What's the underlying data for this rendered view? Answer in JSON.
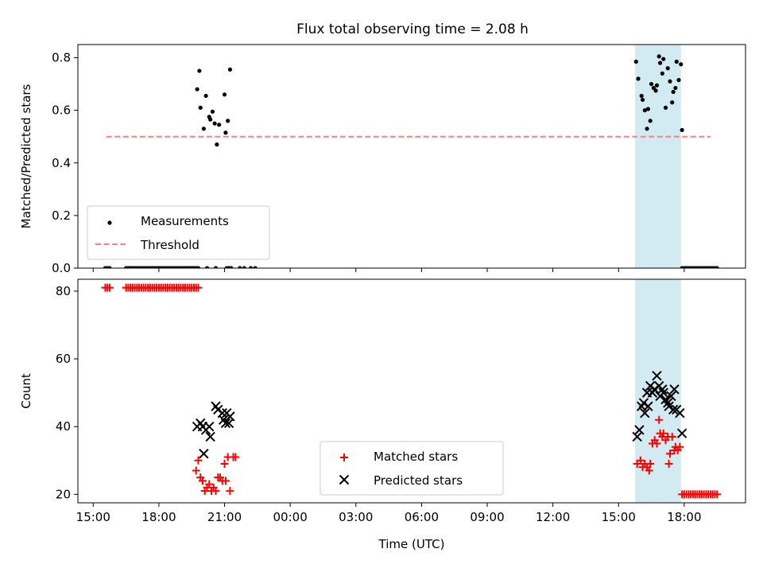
{
  "figure": {
    "title": "Flux total observing time = 2.08 h"
  },
  "colors": {
    "measurements": "#000000",
    "threshold": "#ff7f7f",
    "matched": "#ff0000",
    "predicted": "#000000",
    "highlight": "#add8e6"
  },
  "chart_data": [
    {
      "type": "scatter",
      "ylabel": "Matched/Predicted stars",
      "xlabel": "",
      "x_unit": "hours since 15:00 UTC on day 1",
      "xlim": [
        -0.7,
        29.8
      ],
      "ylim": [
        0,
        0.85
      ],
      "yticks": [
        0.0,
        0.2,
        0.4,
        0.6,
        0.8
      ],
      "ytick_labels": [
        "0.0",
        "0.2",
        "0.4",
        "0.6",
        "0.8"
      ],
      "grid": false,
      "legend_position": "lower-left",
      "highlight_span": {
        "x0": 24.75,
        "x1": 26.85
      },
      "threshold": {
        "name": "Threshold",
        "y": 0.5,
        "x0": 0.6,
        "x1": 28.2
      },
      "series": [
        {
          "name": "Measurements",
          "marker": "dot",
          "points": [
            [
              0.55,
              0
            ],
            [
              0.65,
              0
            ],
            [
              0.75,
              0
            ],
            [
              1.5,
              0
            ],
            [
              1.6,
              0
            ],
            [
              1.7,
              0
            ],
            [
              1.8,
              0
            ],
            [
              1.9,
              0
            ],
            [
              2.0,
              0
            ],
            [
              2.1,
              0
            ],
            [
              2.2,
              0
            ],
            [
              2.3,
              0
            ],
            [
              2.4,
              0
            ],
            [
              2.5,
              0
            ],
            [
              2.6,
              0
            ],
            [
              2.7,
              0
            ],
            [
              2.8,
              0
            ],
            [
              2.9,
              0
            ],
            [
              3.0,
              0
            ],
            [
              3.1,
              0
            ],
            [
              3.2,
              0
            ],
            [
              3.3,
              0
            ],
            [
              3.4,
              0
            ],
            [
              3.5,
              0
            ],
            [
              3.6,
              0
            ],
            [
              3.7,
              0
            ],
            [
              3.8,
              0
            ],
            [
              3.9,
              0
            ],
            [
              4.0,
              0
            ],
            [
              4.1,
              0
            ],
            [
              4.2,
              0
            ],
            [
              4.3,
              0
            ],
            [
              4.4,
              0
            ],
            [
              4.5,
              0
            ],
            [
              4.6,
              0
            ],
            [
              4.7,
              0
            ],
            [
              4.8,
              0
            ],
            [
              5.2,
              0
            ],
            [
              5.6,
              0
            ],
            [
              6.1,
              0
            ],
            [
              6.2,
              0
            ],
            [
              6.3,
              0
            ],
            [
              6.7,
              0
            ],
            [
              6.9,
              0
            ],
            [
              7.2,
              0
            ],
            [
              7.4,
              0
            ],
            [
              4.75,
              0.68
            ],
            [
              4.85,
              0.75
            ],
            [
              4.9,
              0.61
            ],
            [
              5.05,
              0.53
            ],
            [
              5.15,
              0.655
            ],
            [
              5.3,
              0.575
            ],
            [
              5.35,
              0.565
            ],
            [
              5.45,
              0.595
            ],
            [
              5.55,
              0.55
            ],
            [
              5.65,
              0.47
            ],
            [
              5.75,
              0.545
            ],
            [
              6.0,
              0.66
            ],
            [
              6.05,
              0.515
            ],
            [
              6.15,
              0.56
            ],
            [
              6.25,
              0.755
            ],
            [
              24.8,
              0.785
            ],
            [
              24.9,
              0.72
            ],
            [
              25.05,
              0.655
            ],
            [
              25.1,
              0.64
            ],
            [
              25.2,
              0.6
            ],
            [
              25.3,
              0.53
            ],
            [
              25.35,
              0.605
            ],
            [
              25.45,
              0.56
            ],
            [
              25.5,
              0.7
            ],
            [
              25.6,
              0.685
            ],
            [
              25.7,
              0.675
            ],
            [
              25.75,
              0.695
            ],
            [
              25.85,
              0.805
            ],
            [
              25.9,
              0.78
            ],
            [
              26.0,
              0.74
            ],
            [
              26.05,
              0.795
            ],
            [
              26.15,
              0.61
            ],
            [
              26.25,
              0.76
            ],
            [
              26.35,
              0.71
            ],
            [
              26.45,
              0.63
            ],
            [
              26.5,
              0.67
            ],
            [
              26.6,
              0.685
            ],
            [
              26.65,
              0.785
            ],
            [
              26.75,
              0.715
            ],
            [
              26.85,
              0.775
            ],
            [
              26.9,
              0.525
            ],
            [
              26.9,
              0
            ],
            [
              27.0,
              0
            ],
            [
              27.1,
              0
            ],
            [
              27.2,
              0
            ],
            [
              27.3,
              0
            ],
            [
              27.4,
              0
            ],
            [
              27.5,
              0
            ],
            [
              27.6,
              0
            ],
            [
              27.7,
              0
            ],
            [
              27.8,
              0
            ],
            [
              27.9,
              0
            ],
            [
              28.0,
              0
            ],
            [
              28.1,
              0
            ],
            [
              28.2,
              0
            ],
            [
              28.3,
              0
            ],
            [
              28.4,
              0
            ],
            [
              28.5,
              0
            ]
          ]
        }
      ]
    },
    {
      "type": "scatter",
      "ylabel": "Count",
      "xlabel": "Time (UTC)",
      "x_unit": "hours since 15:00 UTC on day 1",
      "xlim": [
        -0.7,
        29.8
      ],
      "ylim": [
        17.5,
        83.5
      ],
      "yticks": [
        20,
        40,
        60,
        80
      ],
      "ytick_labels": [
        "20",
        "40",
        "60",
        "80"
      ],
      "xticks": [
        0,
        3,
        6,
        9,
        12,
        15,
        18,
        21,
        24,
        27
      ],
      "xtick_labels": [
        "15:00",
        "18:00",
        "21:00",
        "00:00",
        "03:00",
        "06:00",
        "09:00",
        "12:00",
        "15:00",
        "18:00"
      ],
      "grid": false,
      "legend_position": "lower-center",
      "highlight_span": {
        "x0": 24.75,
        "x1": 26.85
      },
      "series": [
        {
          "name": "Matched stars",
          "marker": "plus",
          "points": [
            [
              0.55,
              81
            ],
            [
              0.65,
              81
            ],
            [
              0.75,
              81
            ],
            [
              1.5,
              81
            ],
            [
              1.6,
              81
            ],
            [
              1.7,
              81
            ],
            [
              1.8,
              81
            ],
            [
              1.9,
              81
            ],
            [
              2.0,
              81
            ],
            [
              2.1,
              81
            ],
            [
              2.2,
              81
            ],
            [
              2.3,
              81
            ],
            [
              2.4,
              81
            ],
            [
              2.5,
              81
            ],
            [
              2.6,
              81
            ],
            [
              2.7,
              81
            ],
            [
              2.8,
              81
            ],
            [
              2.9,
              81
            ],
            [
              3.0,
              81
            ],
            [
              3.1,
              81
            ],
            [
              3.2,
              81
            ],
            [
              3.3,
              81
            ],
            [
              3.4,
              81
            ],
            [
              3.5,
              81
            ],
            [
              3.6,
              81
            ],
            [
              3.7,
              81
            ],
            [
              3.8,
              81
            ],
            [
              3.9,
              81
            ],
            [
              4.0,
              81
            ],
            [
              4.1,
              81
            ],
            [
              4.2,
              81
            ],
            [
              4.3,
              81
            ],
            [
              4.4,
              81
            ],
            [
              4.5,
              81
            ],
            [
              4.6,
              81
            ],
            [
              4.7,
              81
            ],
            [
              4.8,
              81
            ],
            [
              4.7,
              27
            ],
            [
              4.8,
              30
            ],
            [
              4.9,
              25
            ],
            [
              5.0,
              24
            ],
            [
              5.1,
              21
            ],
            [
              5.2,
              22
            ],
            [
              5.3,
              23
            ],
            [
              5.4,
              21
            ],
            [
              5.5,
              22
            ],
            [
              5.6,
              21
            ],
            [
              5.7,
              25
            ],
            [
              5.8,
              25
            ],
            [
              5.9,
              24
            ],
            [
              6.0,
              29
            ],
            [
              6.05,
              24
            ],
            [
              6.15,
              31
            ],
            [
              6.25,
              21
            ],
            [
              6.4,
              31
            ],
            [
              6.5,
              31
            ],
            [
              24.85,
              29
            ],
            [
              25.0,
              30
            ],
            [
              25.1,
              28
            ],
            [
              25.2,
              29
            ],
            [
              25.3,
              28
            ],
            [
              25.4,
              27
            ],
            [
              25.45,
              29
            ],
            [
              25.55,
              35
            ],
            [
              25.65,
              36
            ],
            [
              25.75,
              35
            ],
            [
              25.85,
              42
            ],
            [
              25.9,
              38
            ],
            [
              26.0,
              37
            ],
            [
              26.05,
              38
            ],
            [
              26.15,
              36
            ],
            [
              26.25,
              37
            ],
            [
              26.3,
              29
            ],
            [
              26.35,
              32
            ],
            [
              26.45,
              37
            ],
            [
              26.55,
              33
            ],
            [
              26.6,
              34
            ],
            [
              26.7,
              33
            ],
            [
              26.8,
              34
            ],
            [
              26.9,
              20
            ],
            [
              27.0,
              20
            ],
            [
              27.1,
              20
            ],
            [
              27.2,
              20
            ],
            [
              27.3,
              20
            ],
            [
              27.4,
              20
            ],
            [
              27.5,
              20
            ],
            [
              27.6,
              20
            ],
            [
              27.7,
              20
            ],
            [
              27.8,
              20
            ],
            [
              27.9,
              20
            ],
            [
              28.0,
              20
            ],
            [
              28.1,
              20
            ],
            [
              28.2,
              20
            ],
            [
              28.3,
              20
            ],
            [
              28.4,
              20
            ],
            [
              28.5,
              20
            ]
          ]
        },
        {
          "name": "Predicted stars",
          "marker": "x",
          "points": [
            [
              4.75,
              40
            ],
            [
              4.9,
              41
            ],
            [
              5.0,
              40
            ],
            [
              5.05,
              32
            ],
            [
              5.15,
              39
            ],
            [
              5.3,
              40
            ],
            [
              5.35,
              37
            ],
            [
              5.6,
              46
            ],
            [
              5.7,
              45
            ],
            [
              5.9,
              44
            ],
            [
              5.95,
              42
            ],
            [
              6.05,
              41
            ],
            [
              6.1,
              44
            ],
            [
              6.2,
              41
            ],
            [
              6.25,
              43
            ],
            [
              24.85,
              37
            ],
            [
              24.95,
              39
            ],
            [
              25.05,
              46
            ],
            [
              25.15,
              47
            ],
            [
              25.2,
              44
            ],
            [
              25.3,
              50
            ],
            [
              25.35,
              46
            ],
            [
              25.45,
              52
            ],
            [
              25.55,
              50
            ],
            [
              25.65,
              51
            ],
            [
              25.75,
              55
            ],
            [
              25.85,
              52
            ],
            [
              25.9,
              49
            ],
            [
              26.0,
              51
            ],
            [
              26.05,
              50
            ],
            [
              26.15,
              48
            ],
            [
              26.25,
              47
            ],
            [
              26.3,
              46
            ],
            [
              26.4,
              49
            ],
            [
              26.5,
              45
            ],
            [
              26.55,
              51
            ],
            [
              26.65,
              45
            ],
            [
              26.8,
              44
            ],
            [
              26.9,
              38
            ]
          ]
        }
      ]
    }
  ]
}
